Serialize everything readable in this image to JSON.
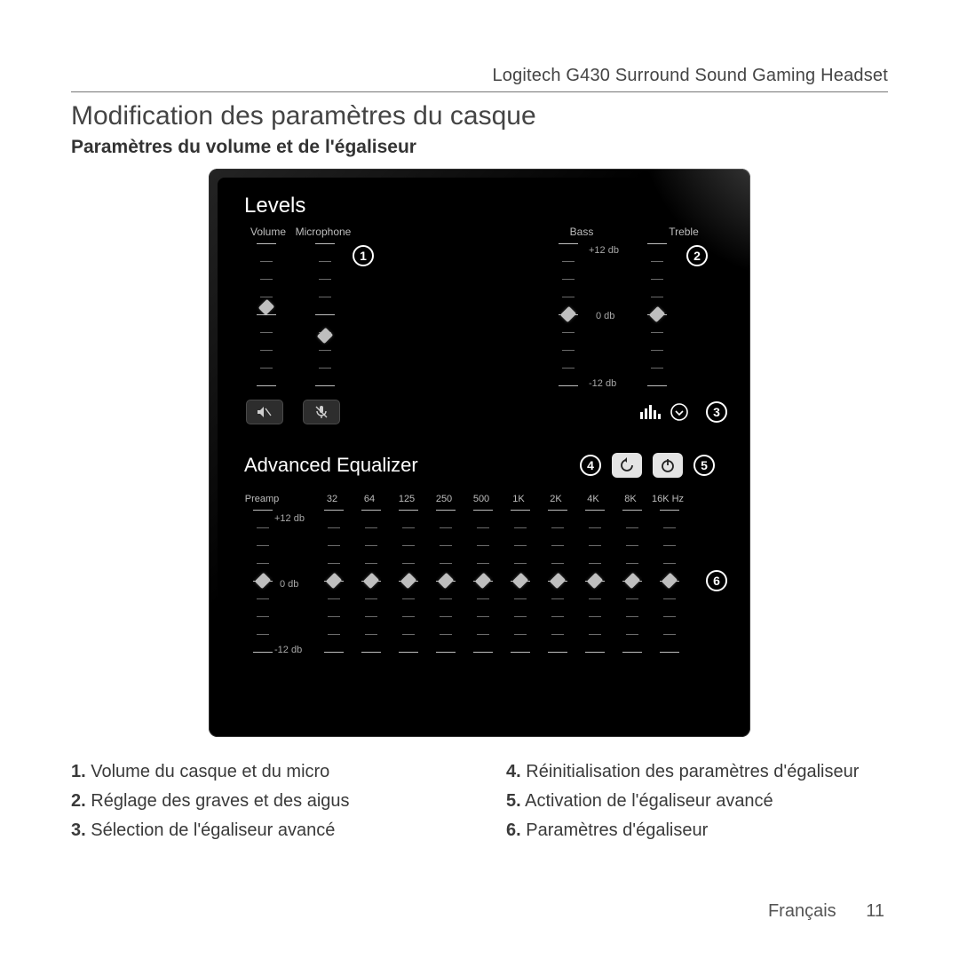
{
  "header": {
    "product": "Logitech G430 Surround Sound Gaming Headset"
  },
  "title": "Modification des paramètres du casque",
  "subtitle": "Paramètres du volume et de l'égaliseur",
  "levels": {
    "section_title": "Levels",
    "labels": {
      "volume": "Volume",
      "microphone": "Microphone",
      "bass": "Bass",
      "treble": "Treble"
    },
    "db": {
      "top": "+12 db",
      "mid": "0 db",
      "bottom": "-12 db"
    },
    "sliders": {
      "volume_pos": 0.55,
      "microphone_pos": 0.35,
      "bass_pos": 0.5,
      "treble_pos": 0.5
    }
  },
  "advanced": {
    "section_title": "Advanced Equalizer",
    "preamp_label": "Preamp",
    "db": {
      "top": "+12 db",
      "mid": "0 db",
      "bottom": "-12 db"
    },
    "bands": [
      "32",
      "64",
      "125",
      "250",
      "500",
      "1K",
      "2K",
      "4K",
      "8K",
      "16K Hz"
    ],
    "preamp_pos": 0.5,
    "band_pos": [
      0.5,
      0.5,
      0.5,
      0.5,
      0.5,
      0.5,
      0.5,
      0.5,
      0.5,
      0.5
    ]
  },
  "callouts": {
    "c1": "1",
    "c2": "2",
    "c3": "3",
    "c4": "4",
    "c5": "5",
    "c6": "6"
  },
  "legend": {
    "i1": {
      "n": "1.",
      "t": "Volume du casque et du micro"
    },
    "i2": {
      "n": "2.",
      "t": "Réglage des graves et des aigus"
    },
    "i3": {
      "n": "3.",
      "t": "Sélection de l'égaliseur avancé"
    },
    "i4": {
      "n": "4.",
      "t": "Réinitialisation des paramètres d'égaliseur"
    },
    "i5": {
      "n": "5.",
      "t": "Activation de l'égaliseur avancé"
    },
    "i6": {
      "n": "6.",
      "t": "Paramètres d'égaliseur"
    }
  },
  "footer": {
    "lang": "Français",
    "page": "11"
  },
  "colors": {
    "page_bg": "#ffffff",
    "panel_bg": "#000000",
    "tick": "#6c6c6c",
    "tick_long": "#bfbfbf",
    "text_light": "#d8d8d8"
  }
}
